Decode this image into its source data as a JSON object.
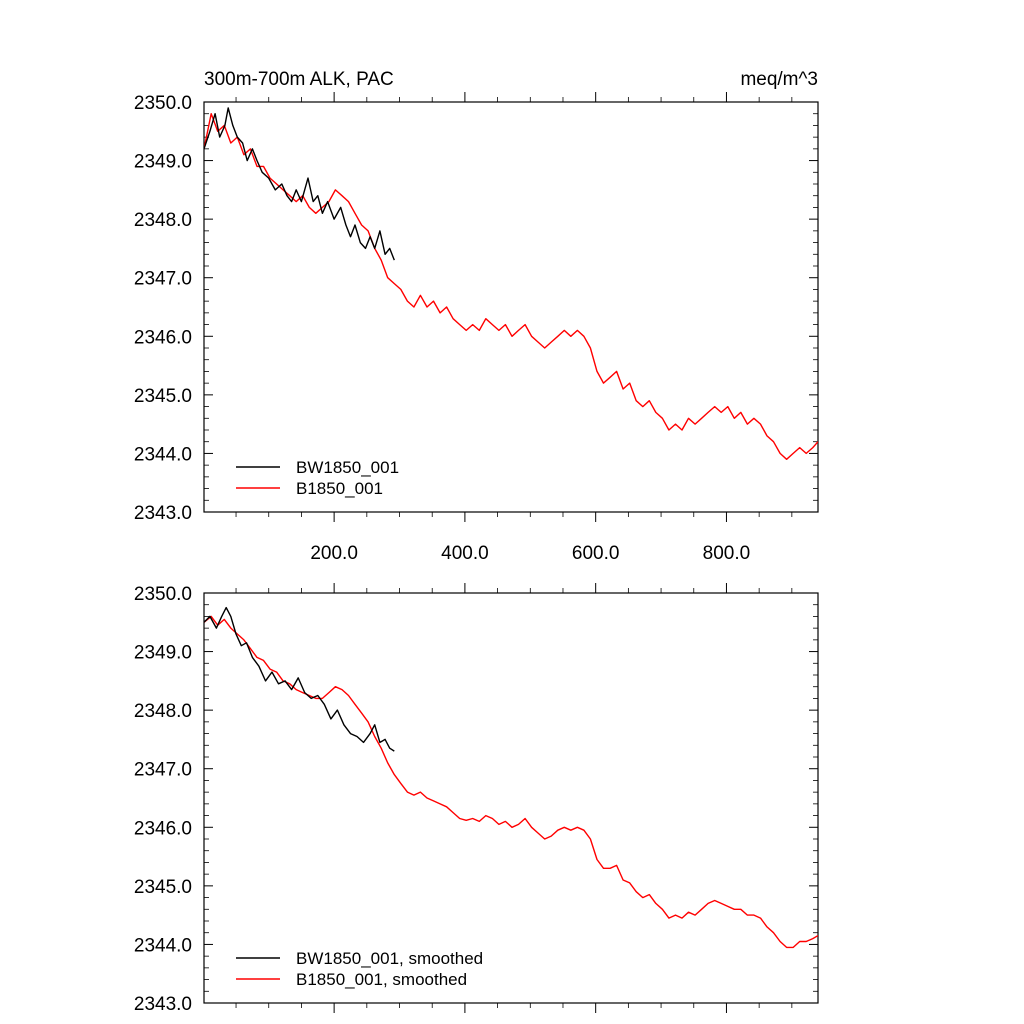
{
  "chart_data": [
    {
      "type": "line",
      "title_left": "300m-700m ALK, PAC",
      "title_right": "meq/m^3",
      "xlabel": "",
      "ylabel": "",
      "xlim": [
        1,
        940
      ],
      "ylim": [
        2343.0,
        2350.0
      ],
      "x_ticks": [
        200,
        400,
        600,
        800
      ],
      "x_tick_labels": [
        "200.0",
        "400.0",
        "600.0",
        "800.0"
      ],
      "y_ticks": [
        2343,
        2344,
        2345,
        2346,
        2347,
        2348,
        2349,
        2350
      ],
      "y_tick_labels": [
        "2343.0",
        "2344.0",
        "2345.0",
        "2346.0",
        "2347.0",
        "2348.0",
        "2349.0",
        "2350.0"
      ],
      "grid": false,
      "legend": "bottom-left",
      "series": [
        {
          "name": "BW1850_001",
          "color": "#000000",
          "x": [
            1,
            10,
            18,
            25,
            33,
            38,
            45,
            52,
            60,
            67,
            75,
            82,
            90,
            100,
            110,
            120,
            128,
            135,
            142,
            150,
            160,
            168,
            175,
            182,
            190,
            200,
            210,
            218,
            225,
            232,
            240,
            248,
            255,
            262,
            270,
            278,
            285,
            292
          ],
          "y": [
            2349.2,
            2349.5,
            2349.8,
            2349.4,
            2349.6,
            2349.9,
            2349.6,
            2349.4,
            2349.3,
            2349.0,
            2349.2,
            2349.0,
            2348.8,
            2348.7,
            2348.5,
            2348.6,
            2348.4,
            2348.3,
            2348.5,
            2348.3,
            2348.7,
            2348.3,
            2348.4,
            2348.1,
            2348.3,
            2348.0,
            2348.2,
            2347.9,
            2347.7,
            2347.9,
            2347.6,
            2347.5,
            2347.7,
            2347.5,
            2347.8,
            2347.4,
            2347.5,
            2347.3
          ]
        },
        {
          "name": "B1850_001",
          "color": "#ff0000",
          "x": [
            1,
            12,
            22,
            32,
            42,
            52,
            62,
            72,
            82,
            92,
            102,
            112,
            122,
            132,
            142,
            152,
            162,
            172,
            182,
            192,
            202,
            212,
            222,
            232,
            242,
            252,
            262,
            272,
            282,
            292,
            302,
            312,
            322,
            332,
            342,
            352,
            362,
            372,
            382,
            392,
            402,
            412,
            422,
            432,
            442,
            452,
            462,
            472,
            482,
            492,
            502,
            512,
            522,
            532,
            542,
            552,
            562,
            572,
            582,
            592,
            602,
            612,
            622,
            632,
            642,
            652,
            662,
            672,
            682,
            692,
            702,
            712,
            722,
            732,
            742,
            752,
            762,
            772,
            782,
            792,
            802,
            812,
            822,
            832,
            842,
            852,
            862,
            872,
            882,
            892,
            902,
            912,
            922,
            932,
            940
          ],
          "y": [
            2349.2,
            2349.8,
            2349.5,
            2349.6,
            2349.3,
            2349.4,
            2349.1,
            2349.2,
            2348.9,
            2348.9,
            2348.7,
            2348.6,
            2348.5,
            2348.4,
            2348.3,
            2348.4,
            2348.2,
            2348.1,
            2348.2,
            2348.3,
            2348.5,
            2348.4,
            2348.3,
            2348.1,
            2347.9,
            2347.8,
            2347.5,
            2347.3,
            2347.0,
            2346.9,
            2346.8,
            2346.6,
            2346.5,
            2346.7,
            2346.5,
            2346.6,
            2346.4,
            2346.5,
            2346.3,
            2346.2,
            2346.1,
            2346.2,
            2346.1,
            2346.3,
            2346.2,
            2346.1,
            2346.2,
            2346.0,
            2346.1,
            2346.2,
            2346.0,
            2345.9,
            2345.8,
            2345.9,
            2346.0,
            2346.1,
            2346.0,
            2346.1,
            2346.0,
            2345.8,
            2345.4,
            2345.2,
            2345.3,
            2345.4,
            2345.1,
            2345.2,
            2344.9,
            2344.8,
            2344.9,
            2344.7,
            2344.6,
            2344.4,
            2344.5,
            2344.4,
            2344.6,
            2344.5,
            2344.6,
            2344.7,
            2344.8,
            2344.7,
            2344.8,
            2344.6,
            2344.7,
            2344.5,
            2344.6,
            2344.5,
            2344.3,
            2344.2,
            2344.0,
            2343.9,
            2344.0,
            2344.1,
            2344.0,
            2344.1,
            2344.2
          ]
        }
      ]
    },
    {
      "type": "line",
      "title_left": "",
      "title_right": "",
      "xlabel": "",
      "ylabel": "",
      "xlim": [
        1,
        940
      ],
      "ylim": [
        2343.0,
        2350.0
      ],
      "x_ticks": [
        200,
        400,
        600,
        800
      ],
      "x_tick_labels": [],
      "y_ticks": [
        2343,
        2344,
        2345,
        2346,
        2347,
        2348,
        2349,
        2350
      ],
      "y_tick_labels": [
        "2343.0",
        "2344.0",
        "2345.0",
        "2346.0",
        "2347.0",
        "2348.0",
        "2349.0",
        "2350.0"
      ],
      "grid": false,
      "legend": "bottom-left",
      "series": [
        {
          "name": "BW1850_001, smoothed",
          "color": "#000000",
          "x": [
            1,
            10,
            20,
            28,
            35,
            42,
            50,
            58,
            66,
            75,
            85,
            95,
            105,
            115,
            125,
            135,
            145,
            155,
            165,
            175,
            185,
            195,
            205,
            215,
            225,
            235,
            245,
            255,
            262,
            270,
            278,
            285,
            292
          ],
          "y": [
            2349.5,
            2349.6,
            2349.4,
            2349.6,
            2349.75,
            2349.6,
            2349.3,
            2349.1,
            2349.15,
            2348.9,
            2348.75,
            2348.5,
            2348.65,
            2348.45,
            2348.5,
            2348.35,
            2348.55,
            2348.3,
            2348.2,
            2348.25,
            2348.1,
            2347.85,
            2348.0,
            2347.75,
            2347.6,
            2347.55,
            2347.45,
            2347.6,
            2347.75,
            2347.45,
            2347.5,
            2347.35,
            2347.3
          ]
        },
        {
          "name": "B1850_001, smoothed",
          "color": "#ff0000",
          "x": [
            1,
            12,
            22,
            32,
            42,
            52,
            62,
            72,
            82,
            92,
            102,
            112,
            122,
            132,
            142,
            152,
            162,
            172,
            182,
            192,
            202,
            212,
            222,
            232,
            242,
            252,
            262,
            272,
            282,
            292,
            302,
            312,
            322,
            332,
            342,
            352,
            362,
            372,
            382,
            392,
            402,
            412,
            422,
            432,
            442,
            452,
            462,
            472,
            482,
            492,
            502,
            512,
            522,
            532,
            542,
            552,
            562,
            572,
            582,
            592,
            602,
            612,
            622,
            632,
            642,
            652,
            662,
            672,
            682,
            692,
            702,
            712,
            722,
            732,
            742,
            752,
            762,
            772,
            782,
            792,
            802,
            812,
            822,
            832,
            842,
            852,
            862,
            872,
            882,
            892,
            902,
            912,
            922,
            932,
            940
          ],
          "y": [
            2349.5,
            2349.6,
            2349.45,
            2349.55,
            2349.4,
            2349.3,
            2349.2,
            2349.05,
            2348.9,
            2348.85,
            2348.7,
            2348.65,
            2348.5,
            2348.45,
            2348.35,
            2348.3,
            2348.25,
            2348.2,
            2348.2,
            2348.3,
            2348.4,
            2348.35,
            2348.25,
            2348.1,
            2347.95,
            2347.8,
            2347.55,
            2347.35,
            2347.1,
            2346.9,
            2346.75,
            2346.6,
            2346.55,
            2346.6,
            2346.5,
            2346.45,
            2346.4,
            2346.35,
            2346.25,
            2346.15,
            2346.12,
            2346.15,
            2346.1,
            2346.2,
            2346.15,
            2346.05,
            2346.1,
            2346.0,
            2346.05,
            2346.15,
            2346.0,
            2345.9,
            2345.8,
            2345.85,
            2345.95,
            2346.0,
            2345.95,
            2346.0,
            2345.95,
            2345.8,
            2345.45,
            2345.3,
            2345.3,
            2345.35,
            2345.1,
            2345.05,
            2344.9,
            2344.8,
            2344.85,
            2344.7,
            2344.6,
            2344.45,
            2344.5,
            2344.45,
            2344.55,
            2344.5,
            2344.6,
            2344.7,
            2344.75,
            2344.7,
            2344.65,
            2344.6,
            2344.6,
            2344.5,
            2344.5,
            2344.45,
            2344.3,
            2344.2,
            2344.05,
            2343.95,
            2343.95,
            2344.05,
            2344.05,
            2344.1,
            2344.15
          ]
        }
      ]
    }
  ]
}
